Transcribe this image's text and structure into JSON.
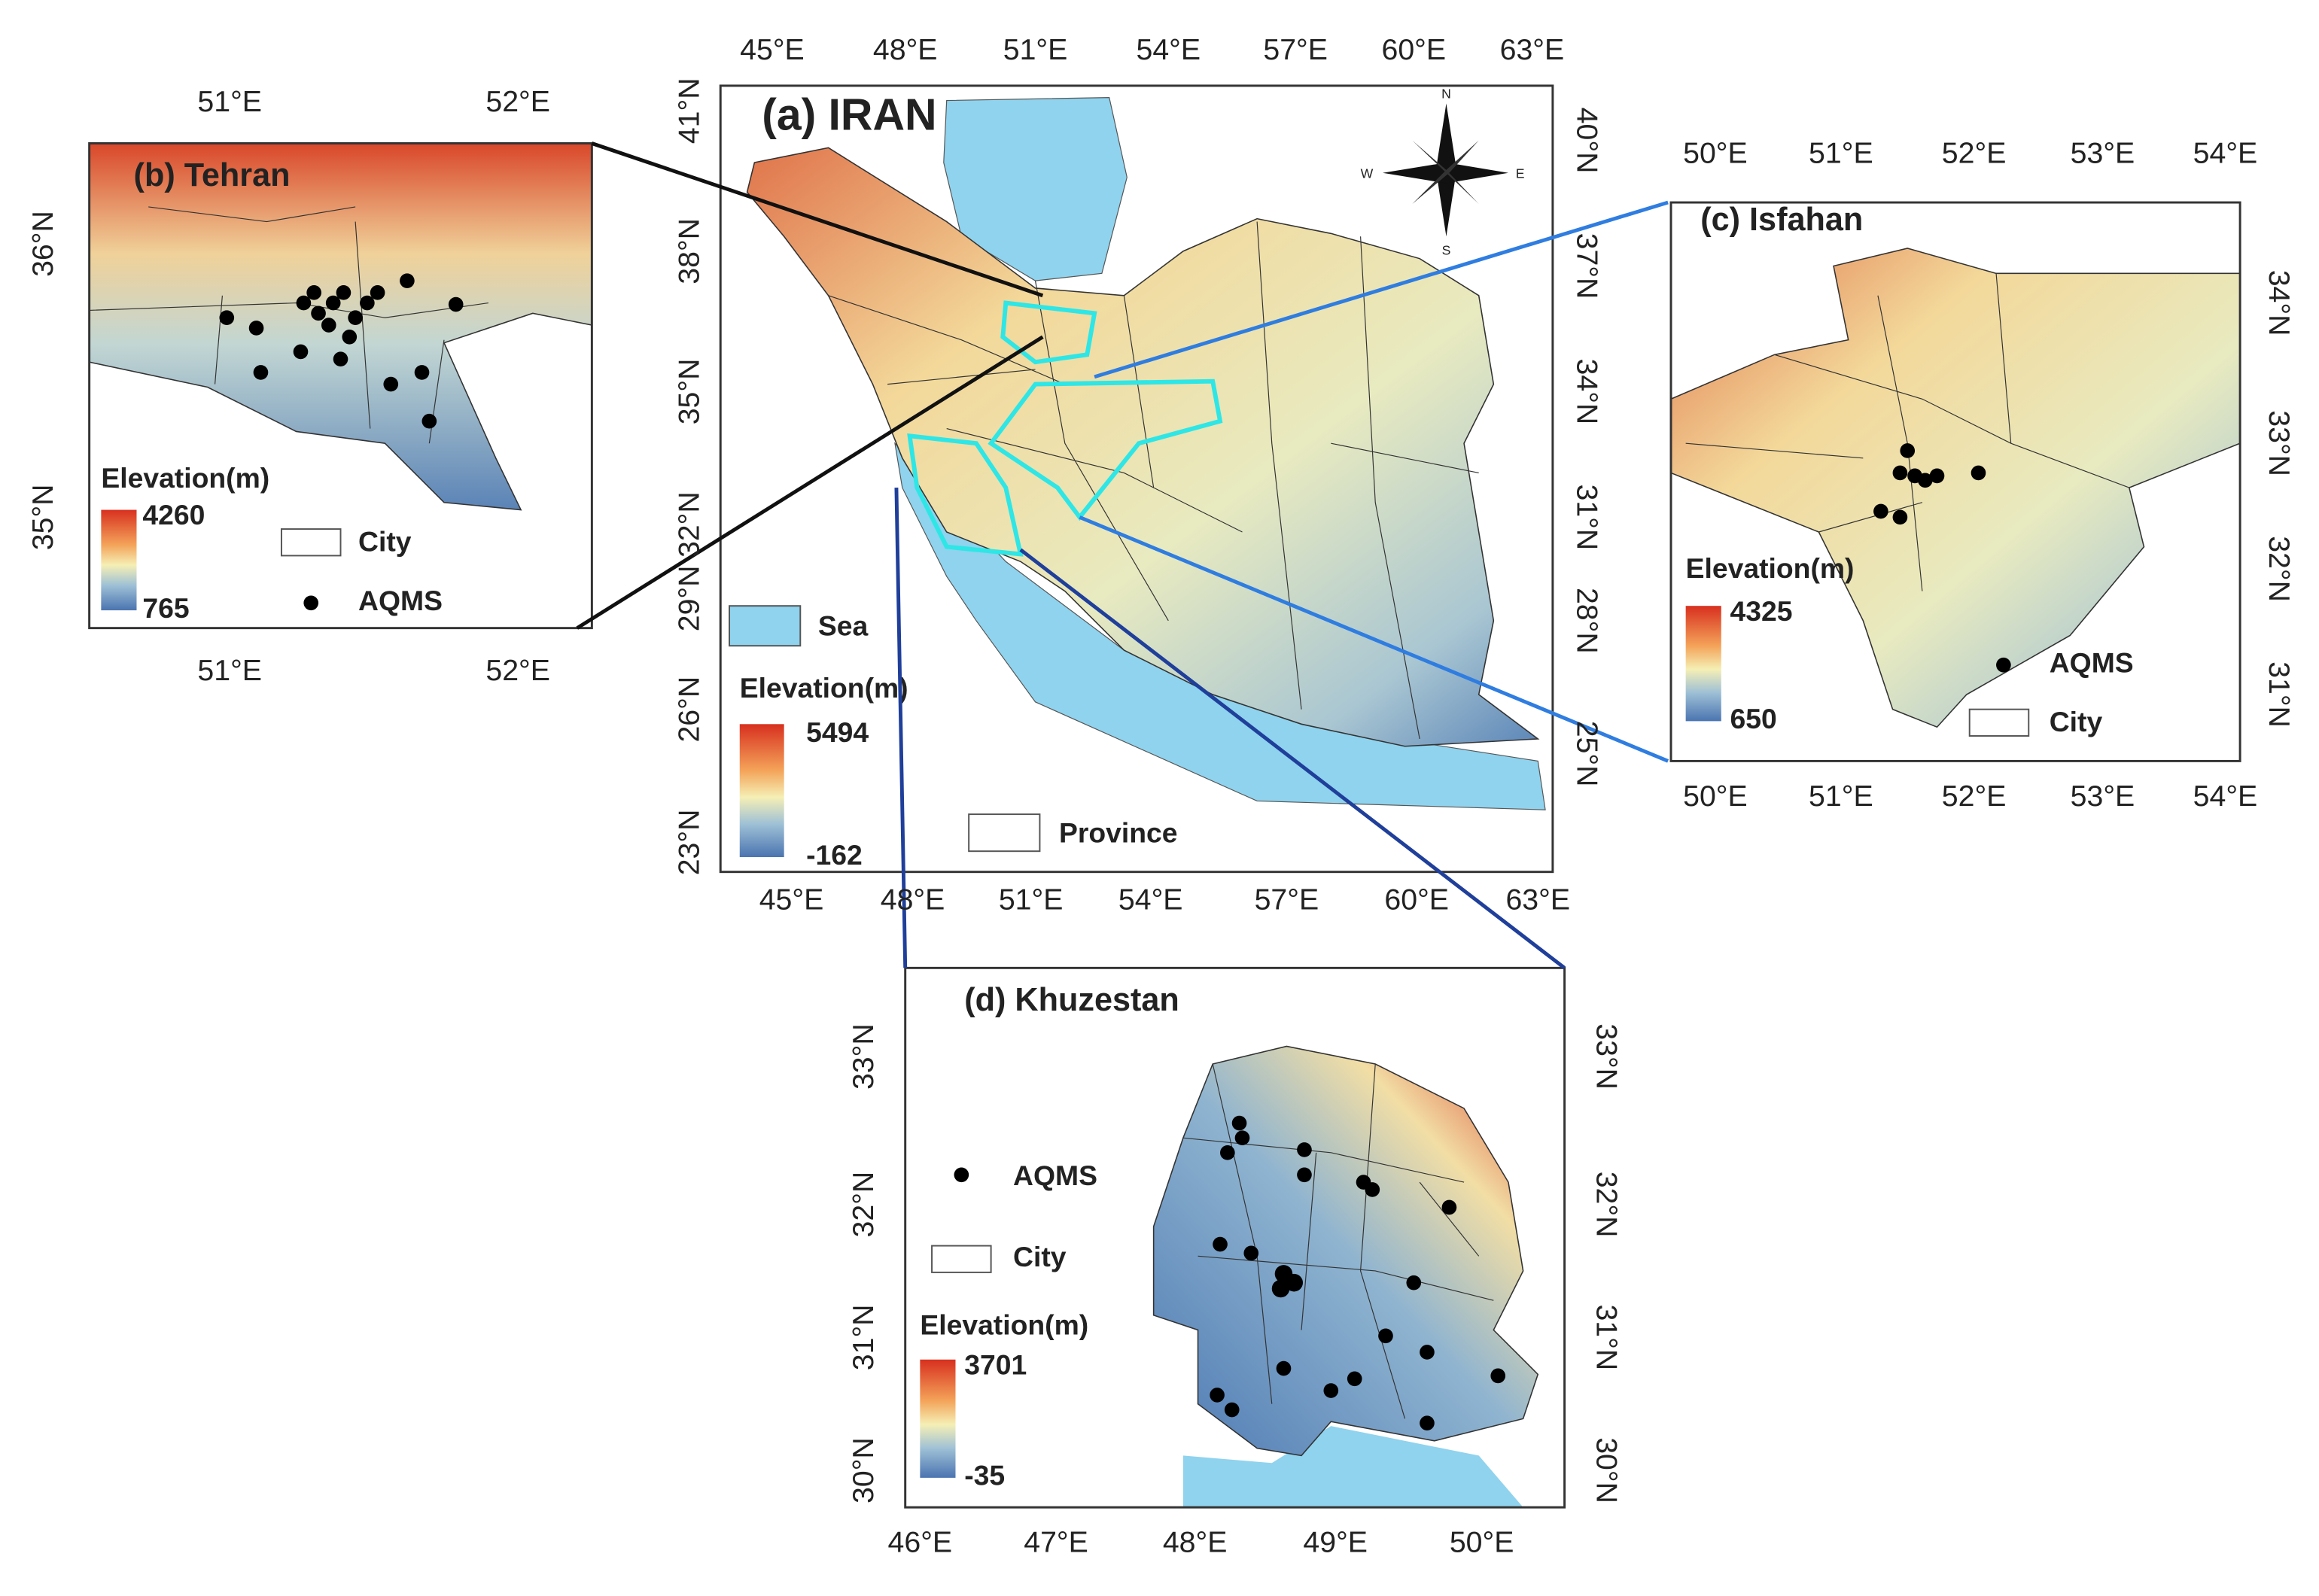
{
  "panels": [
    {
      "title": "(a) IRAN",
      "top_ticks": [
        "45°E",
        "48°E",
        "51°E",
        "54°E",
        "57°E",
        "60°E",
        "63°E"
      ],
      "bottom_ticks": [
        "45°E",
        "48°E",
        "51°E",
        "54°E",
        "57°E",
        "60°E",
        "63°E"
      ],
      "left_ticks": [
        "41°N",
        "38°N",
        "35°N",
        "32°N",
        "29°N",
        "26°N",
        "23°N"
      ],
      "right_ticks": [
        "40°N",
        "37°N",
        "34°N",
        "31°N",
        "28°N",
        "25°N"
      ],
      "legend": {
        "sea": "Sea",
        "elevation_title": "Elevation(m)",
        "elevation_max": "5494",
        "elevation_min": "-162",
        "province": "Province"
      },
      "compass": {
        "n": "N",
        "e": "E",
        "s": "S",
        "w": "W"
      }
    },
    {
      "title": "(b) Tehran",
      "top_ticks": [
        "51°E",
        "52°E"
      ],
      "bottom_ticks": [
        "51°E",
        "52°E"
      ],
      "left_ticks": [
        "36°N",
        "35°N"
      ],
      "legend": {
        "elevation_title": "Elevation(m)",
        "elevation_max": "4260",
        "elevation_min": "765",
        "city": "City",
        "aqms": "AQMS"
      }
    },
    {
      "title": "(c) Isfahan",
      "top_ticks": [
        "50°E",
        "51°E",
        "52°E",
        "53°E",
        "54°E"
      ],
      "bottom_ticks": [
        "50°E",
        "51°E",
        "52°E",
        "53°E",
        "54°E"
      ],
      "right_ticks": [
        "34°N",
        "33°N",
        "32°N",
        "31°N"
      ],
      "legend": {
        "elevation_title": "Elevation(m)",
        "elevation_max": "4325",
        "elevation_min": "650",
        "aqms": "AQMS",
        "city": "City"
      }
    },
    {
      "title": "(d) Khuzestan",
      "bottom_ticks": [
        "46°E",
        "47°E",
        "48°E",
        "49°E",
        "50°E"
      ],
      "left_ticks": [
        "33°N",
        "32°N",
        "31°N",
        "30°N"
      ],
      "right_ticks": [
        "33°N",
        "32°N",
        "31°N",
        "30°N"
      ],
      "legend": {
        "aqms": "AQMS",
        "city": "City",
        "elevation_title": "Elevation(m)",
        "elevation_max": "3701",
        "elevation_min": "-35"
      }
    }
  ]
}
